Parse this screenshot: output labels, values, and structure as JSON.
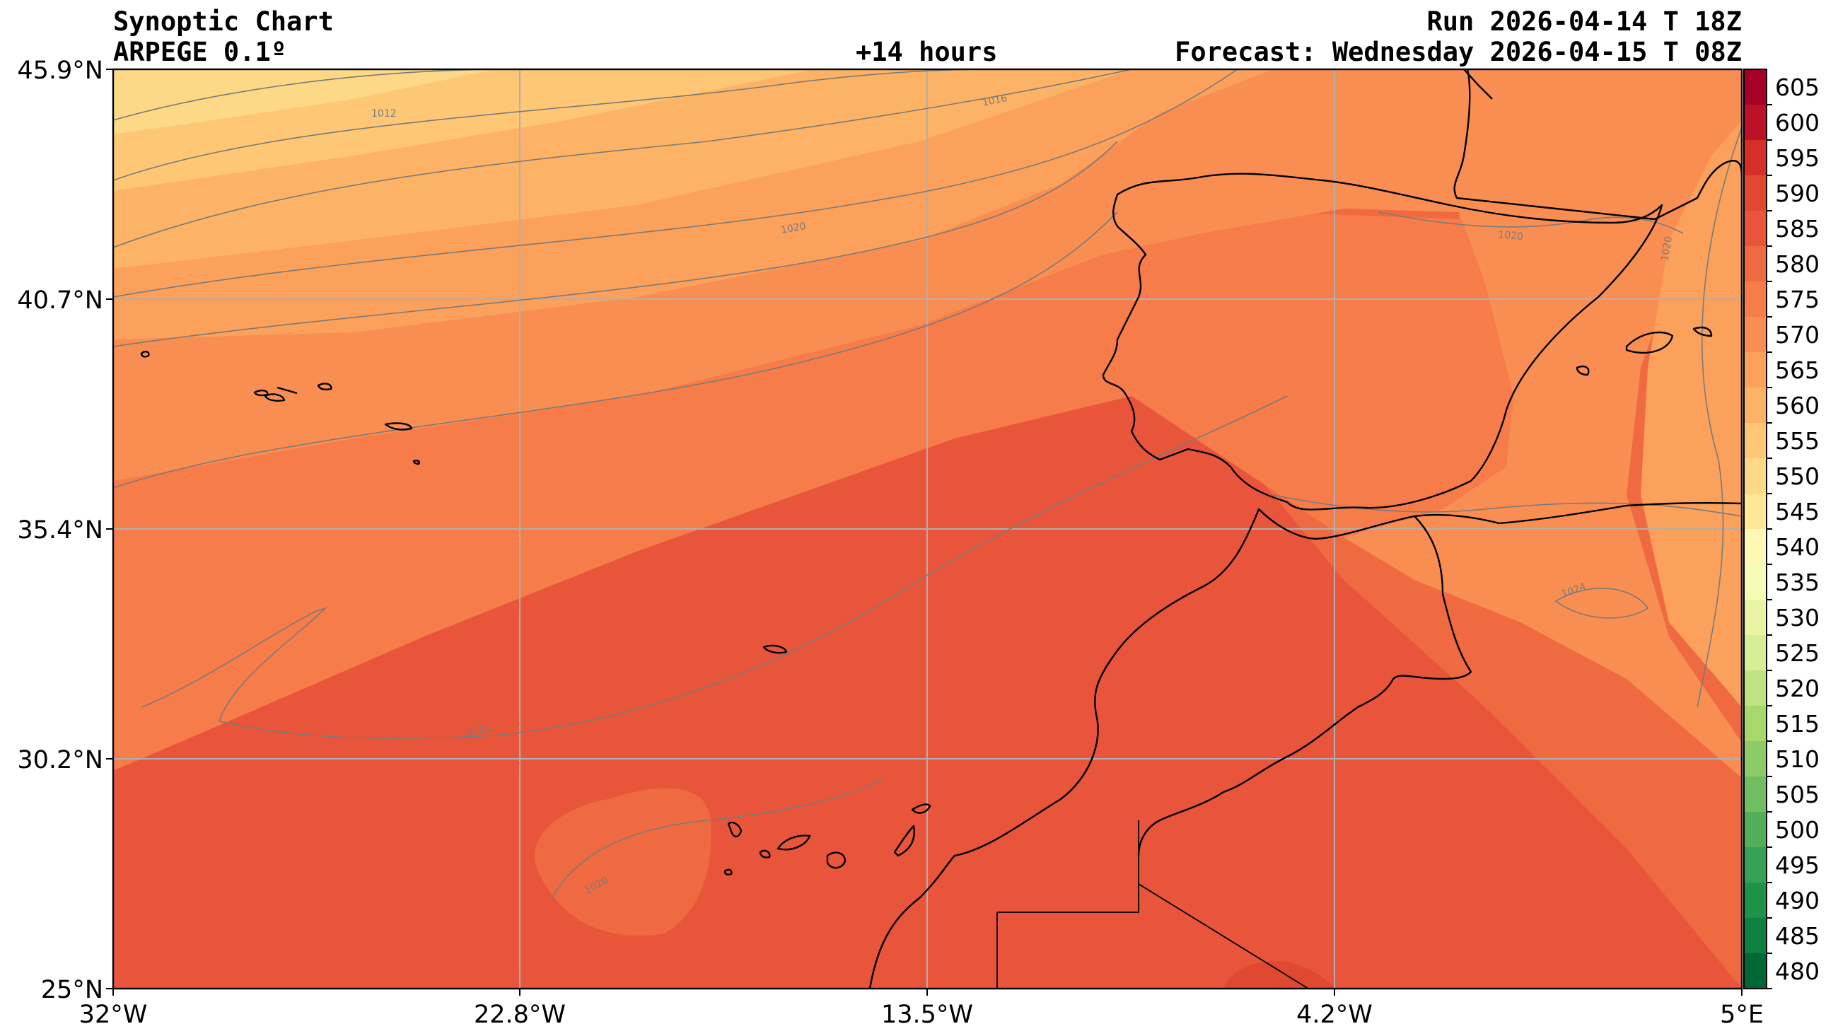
{
  "header": {
    "title": "Synoptic Chart",
    "model": "ARPEGE 0.1º",
    "lead": "+14 hours",
    "run": "Run 2026-04-14 T 18Z",
    "forecast": "Forecast: Wednesday 2026-04-15 T 08Z"
  },
  "axes": {
    "lat_ticks": [
      "45.9°N",
      "40.7°N",
      "35.4°N",
      "30.2°N",
      "25°N"
    ],
    "lon_ticks": [
      "32°W",
      "22.8°W",
      "13.5°W",
      "4.2°W",
      "5°E"
    ]
  },
  "colorbar": {
    "labels": [
      "605",
      "600",
      "595",
      "590",
      "585",
      "580",
      "575",
      "570",
      "565",
      "560",
      "555",
      "550",
      "545",
      "540",
      "535",
      "530",
      "525",
      "520",
      "515",
      "510",
      "505",
      "500",
      "495",
      "490",
      "485",
      "480"
    ],
    "colors": [
      "#a50026",
      "#bd1127",
      "#d62f27",
      "#e14831",
      "#e8553a",
      "#ef6a41",
      "#f67c4a",
      "#f98e52",
      "#fba15b",
      "#fdb365",
      "#fec776",
      "#fdd886",
      "#fee796",
      "#fff8b4",
      "#f6fbb5",
      "#e9f5a5",
      "#d6ee95",
      "#bfe383",
      "#a6d96a",
      "#8ccb67",
      "#70bd62",
      "#53ae5b",
      "#35a154",
      "#1d9349",
      "#0e8140",
      "#006837"
    ]
  },
  "isobars": [
    {
      "label": "1012"
    },
    {
      "label": "1016"
    },
    {
      "label": "1020"
    },
    {
      "label": "1020"
    },
    {
      "label": "1020"
    },
    {
      "label": "1024"
    },
    {
      "label": "1024"
    },
    {
      "label": "1020"
    }
  ]
}
